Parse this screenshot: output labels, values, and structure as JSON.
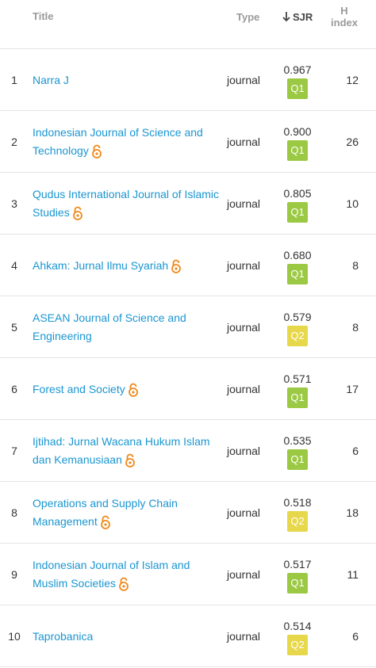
{
  "header": {
    "title": "Title",
    "type": "Type",
    "sjr": "SJR",
    "h_index_line1": "H",
    "h_index_line2": "index"
  },
  "colors": {
    "link": "#1a96d1",
    "open_access": "#f0891b",
    "Q1": "#9cc944",
    "Q2": "#e7d74a"
  },
  "rows": [
    {
      "rank": "1",
      "title": "Narra J",
      "open_access": false,
      "type": "journal",
      "sjr": "0.967",
      "quartile": "Q1",
      "h_index": "12"
    },
    {
      "rank": "2",
      "title": "Indonesian Journal of Science and Technology",
      "open_access": true,
      "type": "journal",
      "sjr": "0.900",
      "quartile": "Q1",
      "h_index": "26"
    },
    {
      "rank": "3",
      "title": "Qudus International Journal of Islamic Studies",
      "open_access": true,
      "type": "journal",
      "sjr": "0.805",
      "quartile": "Q1",
      "h_index": "10"
    },
    {
      "rank": "4",
      "title": "Ahkam: Jurnal Ilmu Syariah",
      "open_access": true,
      "type": "journal",
      "sjr": "0.680",
      "quartile": "Q1",
      "h_index": "8"
    },
    {
      "rank": "5",
      "title": "ASEAN Journal of Science and Engineering",
      "open_access": false,
      "type": "journal",
      "sjr": "0.579",
      "quartile": "Q2",
      "h_index": "8"
    },
    {
      "rank": "6",
      "title": "Forest and Society",
      "open_access": true,
      "type": "journal",
      "sjr": "0.571",
      "quartile": "Q1",
      "h_index": "17"
    },
    {
      "rank": "7",
      "title": "Ijtihad: Jurnal Wacana Hukum Islam dan Kemanusiaan",
      "open_access": true,
      "type": "journal",
      "sjr": "0.535",
      "quartile": "Q1",
      "h_index": "6"
    },
    {
      "rank": "8",
      "title": "Operations and Supply Chain Management",
      "open_access": true,
      "type": "journal",
      "sjr": "0.518",
      "quartile": "Q2",
      "h_index": "18"
    },
    {
      "rank": "9",
      "title": "Indonesian Journal of Islam and Muslim Societies",
      "open_access": true,
      "type": "journal",
      "sjr": "0.517",
      "quartile": "Q1",
      "h_index": "11"
    },
    {
      "rank": "10",
      "title": "Taprobanica",
      "open_access": false,
      "type": "journal",
      "sjr": "0.514",
      "quartile": "Q2",
      "h_index": "6"
    }
  ]
}
